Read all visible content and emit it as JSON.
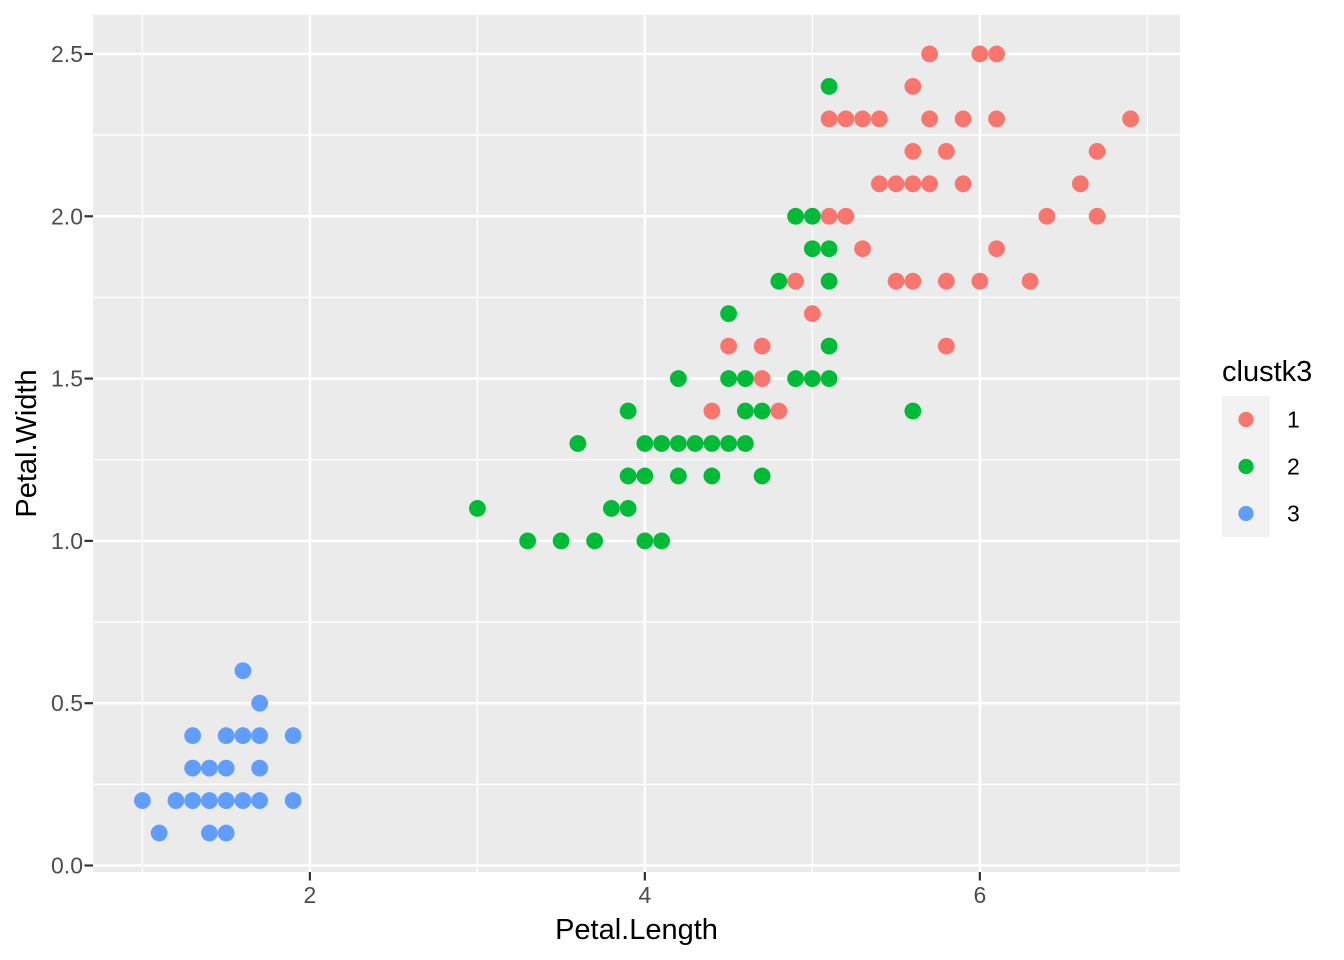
{
  "chart_data": {
    "type": "scatter",
    "title": "",
    "xlabel": "Petal.Length",
    "ylabel": "Petal.Width",
    "xlim": [
      0.705,
      7.195
    ],
    "ylim": [
      -0.02,
      2.62
    ],
    "grid": true,
    "panel_bg": "#EBEBEB",
    "grid_color": "#FFFFFF",
    "tick_color": "#333333",
    "tick_label_color": "#4D4D4D",
    "x_ticks": [
      {
        "v": 2,
        "label": "2"
      },
      {
        "v": 4,
        "label": "4"
      },
      {
        "v": 6,
        "label": "6"
      }
    ],
    "y_ticks": [
      {
        "v": 0.0,
        "label": "0.0"
      },
      {
        "v": 0.5,
        "label": "0.5"
      },
      {
        "v": 1.0,
        "label": "1.0"
      },
      {
        "v": 1.5,
        "label": "1.5"
      },
      {
        "v": 2.0,
        "label": "2.0"
      },
      {
        "v": 2.5,
        "label": "2.5"
      }
    ],
    "x_minor": [
      1,
      3,
      5,
      7
    ],
    "y_minor": [
      0.25,
      0.75,
      1.25,
      1.75,
      2.25
    ],
    "legend": {
      "title": "clustk3",
      "position": "right",
      "key_fill": "#F2F2F2",
      "entries": [
        {
          "label": "1",
          "color": "#F8766D"
        },
        {
          "label": "2",
          "color": "#00BA38"
        },
        {
          "label": "3",
          "color": "#619CFF"
        }
      ]
    },
    "series": [
      {
        "name": "1",
        "color": "#F8766D",
        "points": [
          [
            4.4,
            1.4
          ],
          [
            4.8,
            1.4
          ],
          [
            4.7,
            1.5
          ],
          [
            4.5,
            1.6
          ],
          [
            4.7,
            1.6
          ],
          [
            5.8,
            1.6
          ],
          [
            5.0,
            1.7
          ],
          [
            4.9,
            1.8
          ],
          [
            5.5,
            1.8
          ],
          [
            5.6,
            1.8
          ],
          [
            5.8,
            1.8
          ],
          [
            6.0,
            1.8
          ],
          [
            6.3,
            1.8
          ],
          [
            5.3,
            1.9
          ],
          [
            6.1,
            1.9
          ],
          [
            5.1,
            2.0
          ],
          [
            5.2,
            2.0
          ],
          [
            6.4,
            2.0
          ],
          [
            6.7,
            2.0
          ],
          [
            5.4,
            2.1
          ],
          [
            5.5,
            2.1
          ],
          [
            5.6,
            2.1
          ],
          [
            5.7,
            2.1
          ],
          [
            5.9,
            2.1
          ],
          [
            6.6,
            2.1
          ],
          [
            5.6,
            2.2
          ],
          [
            5.8,
            2.2
          ],
          [
            6.7,
            2.2
          ],
          [
            5.1,
            2.3
          ],
          [
            5.2,
            2.3
          ],
          [
            5.3,
            2.3
          ],
          [
            5.4,
            2.3
          ],
          [
            5.7,
            2.3
          ],
          [
            5.9,
            2.3
          ],
          [
            6.1,
            2.3
          ],
          [
            6.9,
            2.3
          ],
          [
            5.6,
            2.4
          ],
          [
            5.7,
            2.5
          ],
          [
            6.0,
            2.5
          ],
          [
            6.1,
            2.5
          ]
        ]
      },
      {
        "name": "2",
        "color": "#00BA38",
        "points": [
          [
            3.3,
            1.0
          ],
          [
            3.5,
            1.0
          ],
          [
            3.7,
            1.0
          ],
          [
            4.0,
            1.0
          ],
          [
            4.1,
            1.0
          ],
          [
            3.0,
            1.1
          ],
          [
            3.8,
            1.1
          ],
          [
            3.9,
            1.1
          ],
          [
            3.9,
            1.2
          ],
          [
            4.0,
            1.2
          ],
          [
            4.2,
            1.2
          ],
          [
            4.4,
            1.2
          ],
          [
            4.7,
            1.2
          ],
          [
            3.6,
            1.3
          ],
          [
            4.0,
            1.3
          ],
          [
            4.1,
            1.3
          ],
          [
            4.2,
            1.3
          ],
          [
            4.3,
            1.3
          ],
          [
            4.4,
            1.3
          ],
          [
            4.5,
            1.3
          ],
          [
            4.6,
            1.3
          ],
          [
            3.9,
            1.4
          ],
          [
            4.6,
            1.4
          ],
          [
            4.7,
            1.4
          ],
          [
            5.6,
            1.4
          ],
          [
            4.2,
            1.5
          ],
          [
            4.5,
            1.5
          ],
          [
            4.6,
            1.5
          ],
          [
            4.9,
            1.5
          ],
          [
            5.0,
            1.5
          ],
          [
            5.1,
            1.5
          ],
          [
            5.1,
            1.6
          ],
          [
            4.5,
            1.7
          ],
          [
            4.8,
            1.8
          ],
          [
            5.1,
            1.8
          ],
          [
            5.0,
            1.9
          ],
          [
            5.1,
            1.9
          ],
          [
            4.9,
            2.0
          ],
          [
            5.0,
            2.0
          ],
          [
            5.1,
            2.4
          ]
        ]
      },
      {
        "name": "3",
        "color": "#619CFF",
        "points": [
          [
            1.0,
            0.2
          ],
          [
            1.1,
            0.1
          ],
          [
            1.2,
            0.2
          ],
          [
            1.3,
            0.2
          ],
          [
            1.3,
            0.3
          ],
          [
            1.3,
            0.4
          ],
          [
            1.4,
            0.1
          ],
          [
            1.4,
            0.2
          ],
          [
            1.4,
            0.3
          ],
          [
            1.5,
            0.1
          ],
          [
            1.5,
            0.2
          ],
          [
            1.5,
            0.3
          ],
          [
            1.5,
            0.4
          ],
          [
            1.6,
            0.2
          ],
          [
            1.6,
            0.4
          ],
          [
            1.6,
            0.6
          ],
          [
            1.7,
            0.2
          ],
          [
            1.7,
            0.3
          ],
          [
            1.7,
            0.4
          ],
          [
            1.7,
            0.5
          ],
          [
            1.9,
            0.2
          ],
          [
            1.9,
            0.4
          ]
        ]
      }
    ]
  }
}
